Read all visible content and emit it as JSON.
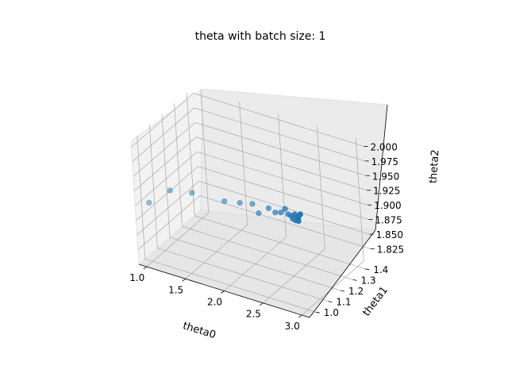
{
  "chart_data": {
    "type": "scatter",
    "title": "theta with batch size: 1",
    "xlabel": "theta0",
    "ylabel": "theta1",
    "zlabel": "theta2",
    "xlim": [
      0.9,
      3.1
    ],
    "ylim": [
      0.95,
      1.45
    ],
    "zlim": [
      1.8,
      2.01
    ],
    "xticks": [
      "1.0",
      "1.5",
      "2.0",
      "2.5",
      "3.0"
    ],
    "yticks": [
      "1.0",
      "1.1",
      "1.2",
      "1.3",
      "1.4"
    ],
    "zticks": [
      "1.825",
      "1.850",
      "1.875",
      "1.900",
      "1.925",
      "1.950",
      "1.975",
      "2.000"
    ],
    "grid": true,
    "point_color": "#1f77b4",
    "points": [
      {
        "x": 1.0,
        "y": 1.0,
        "z": 1.9
      },
      {
        "x": 1.2,
        "y": 1.05,
        "z": 1.92
      },
      {
        "x": 1.4,
        "y": 1.1,
        "z": 1.915
      },
      {
        "x": 1.7,
        "y": 1.17,
        "z": 1.9
      },
      {
        "x": 1.85,
        "y": 1.2,
        "z": 1.898
      },
      {
        "x": 1.98,
        "y": 1.22,
        "z": 1.898
      },
      {
        "x": 2.02,
        "y": 1.24,
        "z": 1.88
      },
      {
        "x": 2.12,
        "y": 1.26,
        "z": 1.889
      },
      {
        "x": 2.17,
        "y": 1.28,
        "z": 1.88
      },
      {
        "x": 2.21,
        "y": 1.3,
        "z": 1.878
      },
      {
        "x": 2.25,
        "y": 1.31,
        "z": 1.884
      },
      {
        "x": 2.27,
        "y": 1.32,
        "z": 1.874
      },
      {
        "x": 2.29,
        "y": 1.33,
        "z": 1.87
      },
      {
        "x": 2.31,
        "y": 1.33,
        "z": 1.866
      },
      {
        "x": 2.32,
        "y": 1.34,
        "z": 1.872
      },
      {
        "x": 2.33,
        "y": 1.34,
        "z": 1.862
      },
      {
        "x": 2.34,
        "y": 1.35,
        "z": 1.868
      },
      {
        "x": 2.35,
        "y": 1.35,
        "z": 1.86
      },
      {
        "x": 2.35,
        "y": 1.35,
        "z": 1.866
      },
      {
        "x": 2.36,
        "y": 1.36,
        "z": 1.87
      }
    ]
  }
}
